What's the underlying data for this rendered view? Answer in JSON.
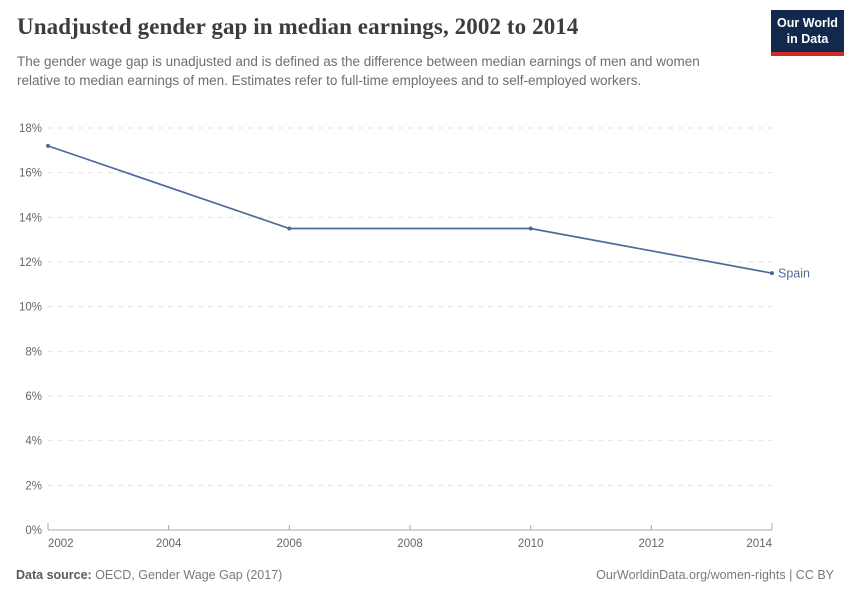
{
  "header": {
    "title": "Unadjusted gender gap in median earnings, 2002 to 2014",
    "logo": {
      "line1": "Our World",
      "line2": "in Data"
    }
  },
  "subtitle": "The gender wage gap is unadjusted and is defined as the difference between median earnings of men and women relative to median earnings of men. Estimates refer to full-time employees and to self-employed workers.",
  "chart_data": {
    "type": "line",
    "title": "Unadjusted gender gap in median earnings, 2002 to 2014",
    "xlabel": "",
    "ylabel": "",
    "xlim": [
      2002,
      2014
    ],
    "ylim": [
      0,
      18
    ],
    "x_ticks": [
      2002,
      2004,
      2006,
      2008,
      2010,
      2012,
      2014
    ],
    "y_ticks": [
      0,
      2,
      4,
      6,
      8,
      10,
      12,
      14,
      16,
      18
    ],
    "y_tick_suffix": "%",
    "grid": "horizontal-dashed",
    "legend_position": "end-of-line-label",
    "series": [
      {
        "name": "Spain",
        "x": [
          2002,
          2006,
          2010,
          2014
        ],
        "y": [
          17.2,
          13.5,
          13.5,
          11.5
        ]
      }
    ]
  },
  "footer": {
    "datasource_label": "Data source:",
    "datasource_value": " OECD, Gender Wage Gap (2017)",
    "right_text": "OurWorldinData.org/women-rights | CC BY"
  },
  "colors": {
    "series_line": "#4C6A9C",
    "entity_label": "#4C6A9C",
    "gridline": "#e3e3e3",
    "axis_line": "#a8a8a8",
    "tick_label": "#666666",
    "logo_background": "#12294d",
    "logo_accent": "#cf2b26"
  }
}
